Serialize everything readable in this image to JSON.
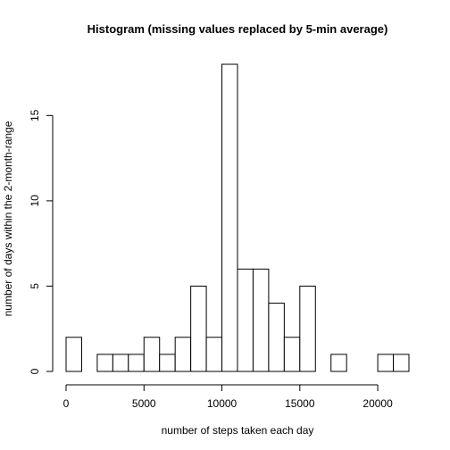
{
  "chart_data": {
    "type": "bar",
    "title": "Histogram (missing values replaced by 5-min average)",
    "xlabel": "number of steps taken each day",
    "ylabel": "number of days within the 2-month-range",
    "bin_width": 1000,
    "bins": [
      {
        "from": 0,
        "to": 1000,
        "count": 2
      },
      {
        "from": 1000,
        "to": 2000,
        "count": 0
      },
      {
        "from": 2000,
        "to": 3000,
        "count": 1
      },
      {
        "from": 3000,
        "to": 4000,
        "count": 1
      },
      {
        "from": 4000,
        "to": 5000,
        "count": 1
      },
      {
        "from": 5000,
        "to": 6000,
        "count": 2
      },
      {
        "from": 6000,
        "to": 7000,
        "count": 1
      },
      {
        "from": 7000,
        "to": 8000,
        "count": 2
      },
      {
        "from": 8000,
        "to": 9000,
        "count": 5
      },
      {
        "from": 9000,
        "to": 10000,
        "count": 2
      },
      {
        "from": 10000,
        "to": 11000,
        "count": 18
      },
      {
        "from": 11000,
        "to": 12000,
        "count": 6
      },
      {
        "from": 12000,
        "to": 13000,
        "count": 6
      },
      {
        "from": 13000,
        "to": 14000,
        "count": 4
      },
      {
        "from": 14000,
        "to": 15000,
        "count": 2
      },
      {
        "from": 15000,
        "to": 16000,
        "count": 5
      },
      {
        "from": 16000,
        "to": 17000,
        "count": 0
      },
      {
        "from": 17000,
        "to": 18000,
        "count": 1
      },
      {
        "from": 18000,
        "to": 19000,
        "count": 0
      },
      {
        "from": 19000,
        "to": 20000,
        "count": 0
      },
      {
        "from": 20000,
        "to": 21000,
        "count": 1
      },
      {
        "from": 21000,
        "to": 22000,
        "count": 1
      }
    ],
    "xlim": [
      0,
      22000
    ],
    "ylim": [
      0,
      18
    ],
    "x_ticks": [
      0,
      5000,
      10000,
      15000,
      20000
    ],
    "y_ticks": [
      0,
      5,
      10,
      15
    ],
    "grid": false,
    "legend": "none"
  }
}
